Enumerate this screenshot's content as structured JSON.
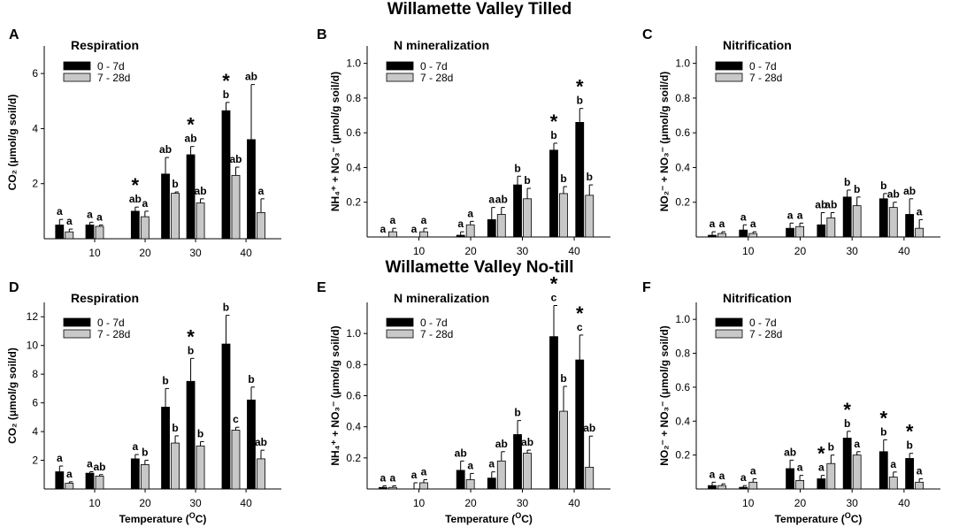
{
  "figure": {
    "title_top": "Willamette Valley Tilled",
    "title_bottom": "Willamette Valley No-till",
    "xlabel": "Temperature (",
    "xlabel_sup": "O",
    "xlabel_end": "C)",
    "legend": [
      "0 - 7d",
      "7 - 28d"
    ],
    "colors": {
      "series1": "#000000",
      "series2": "#c8c8c8",
      "axis": "#000000"
    }
  },
  "chart_data": [
    {
      "id": "A",
      "type": "bar",
      "title": "Respiration",
      "panel_letter": "A",
      "ylabel": "CO₂ (μmol/g soil/d)",
      "ylim": [
        0,
        7
      ],
      "yticks": [
        2,
        4,
        6
      ],
      "x": [
        4,
        10,
        19,
        25,
        30,
        37,
        42
      ],
      "xticks": [
        10,
        20,
        30,
        40
      ],
      "xlim": [
        0,
        47
      ],
      "series": [
        {
          "name": "0 - 7d",
          "values": [
            0.5,
            0.5,
            1.0,
            2.35,
            3.05,
            4.65,
            3.6
          ],
          "errors": [
            0.2,
            0.1,
            0.15,
            0.6,
            0.3,
            0.3,
            2.0
          ],
          "labels": [
            "a",
            "a",
            "ab",
            "ab",
            "ab",
            "b",
            "ab"
          ]
        },
        {
          "name": "7 - 28d",
          "values": [
            0.25,
            0.45,
            0.8,
            1.65,
            1.3,
            2.3,
            0.95
          ],
          "errors": [
            0.1,
            0.05,
            0.2,
            0.05,
            0.15,
            0.3,
            0.5
          ],
          "labels": [
            "a",
            "a",
            "a",
            "b",
            "ab",
            "ab",
            "a"
          ]
        }
      ],
      "stars": [
        null,
        null,
        1,
        null,
        1,
        1,
        null
      ]
    },
    {
      "id": "B",
      "type": "bar",
      "title": "N mineralization",
      "panel_letter": "B",
      "ylabel": "NH₄⁺ + NO₃⁻ (μmol/g soil/d)",
      "ylim": [
        0,
        1.1
      ],
      "yticks": [
        0.2,
        0.4,
        0.6,
        0.8,
        1.0
      ],
      "x": [
        4,
        10,
        19,
        25,
        30,
        37,
        42
      ],
      "xticks": [
        10,
        20,
        30,
        40
      ],
      "xlim": [
        0,
        47
      ],
      "series": [
        {
          "name": "0 - 7d",
          "values": [
            0.0,
            0.0,
            0.01,
            0.1,
            0.3,
            0.5,
            0.66
          ],
          "errors": [
            0,
            0,
            0.02,
            0.07,
            0.05,
            0.04,
            0.08
          ],
          "labels": [
            "a",
            "a",
            "a",
            "a",
            "b",
            "b",
            "b"
          ]
        },
        {
          "name": "7 - 28d",
          "values": [
            0.03,
            0.03,
            0.07,
            0.13,
            0.22,
            0.25,
            0.24
          ],
          "errors": [
            0.02,
            0.02,
            0.02,
            0.04,
            0.06,
            0.04,
            0.06
          ],
          "labels": [
            "a",
            "a",
            "a",
            "ab",
            "b",
            "b",
            "b"
          ]
        }
      ],
      "stars": [
        null,
        null,
        null,
        null,
        null,
        1,
        1
      ]
    },
    {
      "id": "C",
      "type": "bar",
      "title": "Nitrification",
      "panel_letter": "C",
      "ylabel": "NO₂⁻ + NO₃⁻ (μmol/g soil/d)",
      "ylim": [
        0,
        1.1
      ],
      "yticks": [
        0.2,
        0.4,
        0.6,
        0.8,
        1.0
      ],
      "x": [
        4,
        10,
        19,
        25,
        30,
        37,
        42
      ],
      "xticks": [
        10,
        20,
        30,
        40
      ],
      "xlim": [
        0,
        47
      ],
      "series": [
        {
          "name": "0 - 7d",
          "values": [
            0.01,
            0.04,
            0.05,
            0.07,
            0.23,
            0.22,
            0.13
          ],
          "errors": [
            0.02,
            0.03,
            0.03,
            0.07,
            0.04,
            0.03,
            0.09
          ],
          "labels": [
            "a",
            "a",
            "a",
            "ab",
            "b",
            "b",
            "ab"
          ]
        },
        {
          "name": "7 - 28d",
          "values": [
            0.02,
            0.02,
            0.06,
            0.11,
            0.18,
            0.17,
            0.05
          ],
          "errors": [
            0.01,
            0.01,
            0.02,
            0.03,
            0.05,
            0.03,
            0.05
          ],
          "labels": [
            "a",
            "a",
            "a",
            "ab",
            "b",
            "ab",
            "a"
          ]
        }
      ],
      "stars": [
        null,
        null,
        null,
        null,
        null,
        null,
        null
      ]
    },
    {
      "id": "D",
      "type": "bar",
      "title": "Respiration",
      "panel_letter": "D",
      "ylabel": "CO₂ (μmol/g soil/d)",
      "ylim": [
        0,
        13
      ],
      "yticks": [
        2,
        4,
        6,
        8,
        10,
        12
      ],
      "x": [
        4,
        10,
        19,
        25,
        30,
        37,
        42
      ],
      "xticks": [
        10,
        20,
        30,
        40
      ],
      "xlim": [
        0,
        47
      ],
      "series": [
        {
          "name": "0 - 7d",
          "values": [
            1.2,
            1.1,
            2.1,
            5.7,
            7.5,
            10.1,
            6.2
          ],
          "errors": [
            0.4,
            0.1,
            0.3,
            1.3,
            1.6,
            2.0,
            0.9
          ],
          "labels": [
            "a",
            "a",
            "a",
            "b",
            "b",
            "b",
            "b"
          ]
        },
        {
          "name": "7 - 28d",
          "values": [
            0.4,
            0.9,
            1.7,
            3.2,
            3.0,
            4.1,
            2.1
          ],
          "errors": [
            0.1,
            0.1,
            0.3,
            0.5,
            0.3,
            0.2,
            0.6
          ],
          "labels": [
            "a",
            "ab",
            "b",
            "b",
            "b",
            "c",
            "ab"
          ]
        }
      ],
      "stars": [
        null,
        null,
        null,
        null,
        1,
        null,
        null
      ]
    },
    {
      "id": "E",
      "type": "bar",
      "title": "N mineralization",
      "panel_letter": "E",
      "ylabel": "NH₄⁺ + NO₃⁻ (μmol/g soil/d)",
      "ylim": [
        0,
        1.2
      ],
      "yticks": [
        0.2,
        0.4,
        0.6,
        0.8,
        1.0
      ],
      "x": [
        4,
        10,
        19,
        25,
        30,
        37,
        42
      ],
      "xticks": [
        10,
        20,
        30,
        40
      ],
      "xlim": [
        0,
        47
      ],
      "series": [
        {
          "name": "0 - 7d",
          "values": [
            0.01,
            0.0,
            0.12,
            0.07,
            0.35,
            0.98,
            0.83
          ],
          "errors": [
            0.01,
            0.04,
            0.06,
            0.04,
            0.09,
            0.2,
            0.16
          ],
          "labels": [
            "a",
            "a",
            "ab",
            "a",
            "b",
            "c",
            "c"
          ]
        },
        {
          "name": "7 - 28d",
          "values": [
            0.01,
            0.04,
            0.06,
            0.18,
            0.23,
            0.5,
            0.14
          ],
          "errors": [
            0.01,
            0.02,
            0.04,
            0.06,
            0.02,
            0.16,
            0.2
          ],
          "labels": [
            "a",
            "a",
            "a",
            "ab",
            "ab",
            "b",
            "ab"
          ]
        }
      ],
      "stars": [
        null,
        null,
        null,
        null,
        null,
        1,
        1
      ]
    },
    {
      "id": "F",
      "type": "bar",
      "title": "Nitrification",
      "panel_letter": "F",
      "ylabel": "NO₂⁻ + NO₃⁻ (μmol/g soil/d)",
      "ylim": [
        0,
        1.1
      ],
      "yticks": [
        0.2,
        0.4,
        0.6,
        0.8,
        1.0
      ],
      "x": [
        4,
        10,
        19,
        25,
        30,
        37,
        42
      ],
      "xticks": [
        10,
        20,
        30,
        40
      ],
      "xlim": [
        0,
        47
      ],
      "series": [
        {
          "name": "0 - 7d",
          "values": [
            0.02,
            0.01,
            0.12,
            0.06,
            0.3,
            0.22,
            0.18
          ],
          "errors": [
            0.02,
            0.01,
            0.05,
            0.02,
            0.04,
            0.07,
            0.03
          ],
          "labels": [
            "a",
            "a",
            "ab",
            "a",
            "b",
            "b",
            "b"
          ]
        },
        {
          "name": "7 - 28d",
          "values": [
            0.02,
            0.04,
            0.05,
            0.15,
            0.2,
            0.07,
            0.04
          ],
          "errors": [
            0.01,
            0.02,
            0.03,
            0.05,
            0.02,
            0.03,
            0.02
          ],
          "labels": [
            "a",
            "a",
            "a",
            "b",
            "a",
            "a",
            "a"
          ]
        }
      ],
      "stars": [
        null,
        null,
        null,
        1,
        1,
        1,
        1
      ]
    }
  ]
}
